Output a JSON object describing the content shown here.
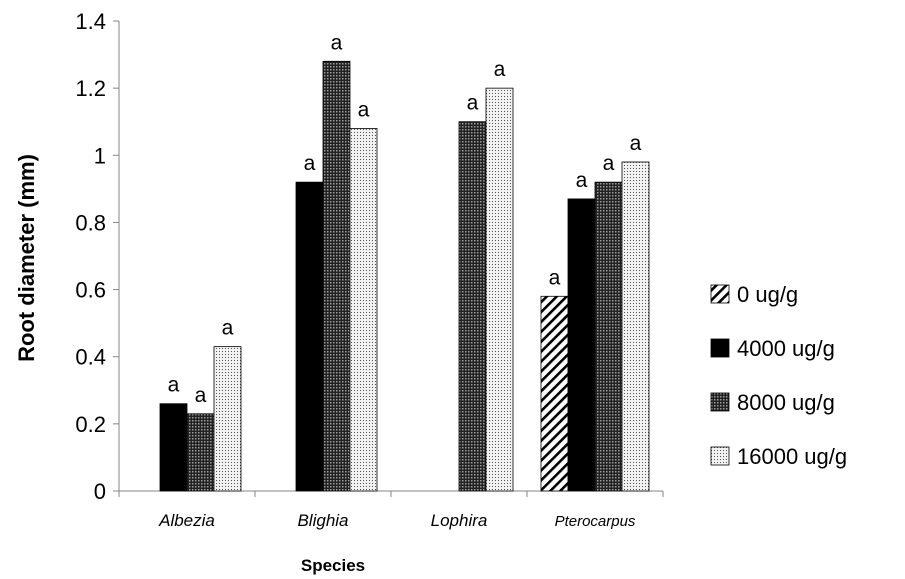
{
  "chart_data": {
    "type": "bar",
    "title": "",
    "xlabel": "Species",
    "ylabel": "Root diameter (mm)",
    "ylim": [
      0,
      1.4
    ],
    "yticks": [
      "0",
      "0.2",
      "0.4",
      "0.6",
      "0.8",
      "1",
      "1.2",
      "1.4"
    ],
    "categories": [
      "Albezia",
      "Blighia",
      "Lophira",
      "Pterocarpus"
    ],
    "grid": false,
    "legend_position": "right",
    "series": [
      {
        "name": "0 ug/g",
        "pattern": "diagonal-hatch",
        "color": "#000000",
        "values": [
          null,
          null,
          null,
          0.58
        ],
        "labels": [
          "",
          "",
          "",
          "a"
        ]
      },
      {
        "name": "4000 ug/g",
        "pattern": "solid",
        "color": "#000000",
        "values": [
          0.26,
          0.92,
          null,
          0.87
        ],
        "labels": [
          "a",
          "a",
          "",
          "a"
        ]
      },
      {
        "name": "8000 ug/g",
        "pattern": "dark-dots",
        "color": "#555555",
        "values": [
          0.23,
          1.28,
          1.1,
          0.92
        ],
        "labels": [
          "a",
          "a",
          "a",
          "a"
        ]
      },
      {
        "name": "16000 ug/g",
        "pattern": "light-dots",
        "color": "#dddddd",
        "values": [
          0.43,
          1.08,
          1.2,
          0.98
        ],
        "labels": [
          "a",
          "a",
          "a",
          "a"
        ]
      }
    ]
  }
}
